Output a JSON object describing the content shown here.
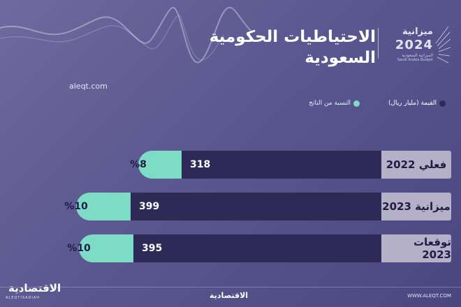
{
  "header": {
    "title_line1": "الاحتياطيات الحكومية",
    "title_line2": "السعودية",
    "logo_text": "ميزانية",
    "logo_number": "2024",
    "logo_sub_line1": "الميزانية السعودية",
    "logo_sub_line2": "Saudi Arabia Budget"
  },
  "source": "aleqt.com",
  "legend": {
    "value_label": "القيمة (مليار ريال)",
    "pct_label": "النسبة من الناتج"
  },
  "colors": {
    "value_bar": "#2e2a58",
    "pct_bar": "#7ddcc6",
    "label_box": "#b3b0c8",
    "background": "#5b5790"
  },
  "chart_data": {
    "type": "bar",
    "orientation": "horizontal",
    "categories": [
      "فعلي 2022",
      "ميزانية 2023",
      "توقعات 2023"
    ],
    "series": [
      {
        "name": "القيمة (مليار ريال)",
        "values": [
          318,
          399,
          395
        ]
      },
      {
        "name": "النسبة من الناتج",
        "values": [
          8,
          10,
          10
        ]
      }
    ],
    "value_labels": [
      "318",
      "399",
      "395"
    ],
    "pct_labels": [
      "%8",
      "%10",
      "%10"
    ],
    "legend_position": "top-right",
    "grid": false
  },
  "footer": {
    "left_brand": "الاقتصادية",
    "left_brand_sub": "ALEQTISADIAH",
    "center_brand": "الاقتصادية",
    "right_site": "WWW.ALEQT.COM"
  }
}
